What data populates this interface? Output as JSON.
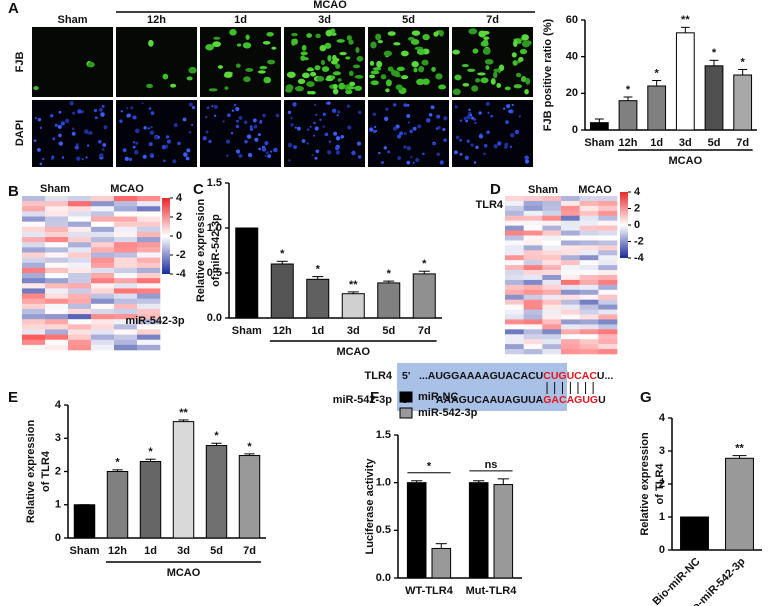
{
  "panels": {
    "a": "A",
    "b": "B",
    "c": "C",
    "d": "D",
    "e": "E",
    "f": "F",
    "g": "G"
  },
  "images": {
    "group": "MCAO",
    "columns": [
      "Sham",
      "12h",
      "1d",
      "3d",
      "5d",
      "7d"
    ],
    "rows": [
      "FJB",
      "DAPI"
    ]
  },
  "heatmaps": [
    {
      "groups": [
        "Sham",
        "MCAO"
      ],
      "colorbar_ticks": [
        4,
        2,
        0,
        -2,
        -4
      ],
      "annotation": "miR-542-3p"
    },
    {
      "groups": [
        "Sham",
        "MCAO"
      ],
      "colorbar_ticks": [
        4,
        2,
        0,
        -2,
        -4
      ],
      "annotation": "TLR4"
    }
  ],
  "sequence": {
    "rows": [
      {
        "name": "TLR4",
        "end": "5'",
        "parts": [
          "...AUGGAAAAGUACACU",
          "CUGUCAC",
          "U..."
        ]
      },
      {
        "name": "miR-542-3p",
        "end": "3'",
        "parts": [
          "AAAGUCAAUAGUUA",
          "GACAGUG",
          "U"
        ]
      }
    ]
  },
  "chart_data": [
    {
      "type": "bar",
      "ylabel": [
        "FJB positive ratio (%)"
      ],
      "categories": [
        "Sham",
        "12h",
        "1d",
        "3d",
        "5d",
        "7d"
      ],
      "values": [
        4,
        16,
        24,
        53,
        35,
        30
      ],
      "errors": [
        2,
        2,
        3,
        3,
        3,
        3
      ],
      "annotations": [
        null,
        "*",
        "*",
        "**",
        "*",
        "*"
      ],
      "colors": [
        "#000000",
        "#808080",
        "#808080",
        "#ffffff",
        "#505050",
        "#a8a8a8"
      ],
      "ylim": [
        0,
        60
      ],
      "yticks": [
        0,
        20,
        40,
        60
      ],
      "group_label": "MCAO"
    },
    {
      "type": "bar",
      "ylabel": [
        "Relative expression",
        "of miR-542-3p"
      ],
      "categories": [
        "Sham",
        "12h",
        "1d",
        "3d",
        "5d",
        "7d"
      ],
      "values": [
        1,
        0.6,
        0.43,
        0.27,
        0.39,
        0.49
      ],
      "errors": [
        0,
        0.03,
        0.03,
        0.02,
        0.02,
        0.03
      ],
      "annotations": [
        null,
        "*",
        "*",
        "**",
        "*",
        "*"
      ],
      "colors": [
        "#000000",
        "#555555",
        "#606060",
        "#d0d0d0",
        "#808080",
        "#909090"
      ],
      "ylim": [
        0,
        1.5
      ],
      "yticks": [
        {
          "value": 0,
          "label": "0.0"
        },
        {
          "value": 0.5,
          "label": "0.5"
        },
        {
          "value": 1,
          "label": "1.0"
        },
        {
          "value": 1.5,
          "label": "1.5"
        }
      ],
      "group_label": "MCAO"
    },
    {
      "type": "bar",
      "ylabel": [
        "Relative expression",
        "of TLR4"
      ],
      "categories": [
        "Sham",
        "12h",
        "1d",
        "3d",
        "5d",
        "7d"
      ],
      "values": [
        1,
        2.0,
        2.3,
        3.5,
        2.78,
        2.48
      ],
      "errors": [
        0,
        0.05,
        0.07,
        0.05,
        0.07,
        0.05
      ],
      "annotations": [
        null,
        "*",
        "*",
        "**",
        "*",
        "*"
      ],
      "colors": [
        "#000000",
        "#808080",
        "#666666",
        "#d9d9d9",
        "#707070",
        "#999999"
      ],
      "ylim": [
        0,
        4
      ],
      "yticks": [
        0,
        1,
        2,
        3,
        4
      ],
      "group_label": "MCAO"
    },
    {
      "type": "grouped_bar",
      "ylabel": [
        "Luciferase activity"
      ],
      "categories": [
        "WT-TLR4",
        "Mut-TLR4"
      ],
      "series": [
        {
          "name": "miR-NC",
          "color": "#000000",
          "values": [
            1,
            1
          ],
          "errors": [
            0.02,
            0.02
          ]
        },
        {
          "name": "miR-542-3p",
          "color": "#999999",
          "values": [
            0.31,
            0.98
          ],
          "errors": [
            0.05,
            0.06
          ]
        }
      ],
      "annotations": [
        "*",
        "ns"
      ],
      "legend": "top-left",
      "ylim": [
        0,
        1.5
      ],
      "yticks": [
        {
          "value": 0,
          "label": "0.0"
        },
        {
          "value": 0.5,
          "label": "0.5"
        },
        {
          "value": 1,
          "label": "1.0"
        },
        {
          "value": 1.5,
          "label": "1.5"
        }
      ]
    },
    {
      "type": "bar",
      "ylabel": [
        "Relative expression",
        "of TLR4"
      ],
      "categories": [
        "Bio-miR-NC",
        "Bio-miR-542-3p"
      ],
      "values": [
        1,
        2.78
      ],
      "errors": [
        0,
        0.08
      ],
      "annotations": [
        null,
        "**"
      ],
      "colors": [
        "#000000",
        "#999999"
      ],
      "ylim": [
        0,
        4
      ],
      "yticks": [
        0,
        1,
        2,
        3,
        4
      ]
    }
  ]
}
